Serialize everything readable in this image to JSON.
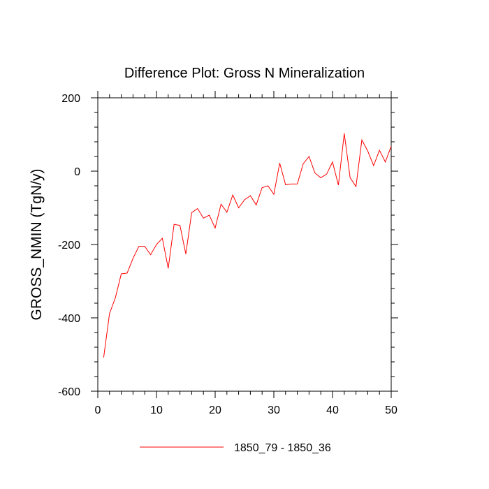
{
  "chart_data": {
    "type": "line",
    "title": "Difference Plot: Gross N Mineralization",
    "xlabel": "",
    "ylabel": "GROSS_NMIN  (TgN/y)",
    "xlim": [
      0,
      50
    ],
    "ylim": [
      -600,
      200
    ],
    "xticks": [
      0,
      10,
      20,
      30,
      40,
      50
    ],
    "yticks": [
      200,
      0,
      -200,
      -400,
      -600
    ],
    "xtick_labels": [
      "0",
      "10",
      "20",
      "30",
      "40",
      "50"
    ],
    "ytick_labels": [
      "200",
      "0",
      "-200",
      "-400",
      "-600"
    ],
    "legend_position": "bottom-center",
    "series": [
      {
        "name": "1850_79 - 1850_36",
        "color": "#ff0000",
        "x": [
          1,
          2,
          3,
          4,
          5,
          6,
          7,
          8,
          9,
          10,
          11,
          12,
          13,
          14,
          15,
          16,
          17,
          18,
          19,
          20,
          21,
          22,
          23,
          24,
          25,
          26,
          27,
          28,
          29,
          30,
          31,
          32,
          33,
          34,
          35,
          36,
          37,
          38,
          39,
          40,
          41,
          42,
          43,
          44,
          45,
          46,
          47,
          48,
          49,
          50
        ],
        "values": [
          -508,
          -388,
          -345,
          -280,
          -278,
          -238,
          -205,
          -205,
          -228,
          -200,
          -183,
          -265,
          -145,
          -148,
          -226,
          -113,
          -102,
          -128,
          -120,
          -155,
          -90,
          -112,
          -65,
          -100,
          -78,
          -67,
          -92,
          -45,
          -40,
          -63,
          22,
          -37,
          -35,
          -35,
          20,
          40,
          -5,
          -18,
          -8,
          25,
          -38,
          103,
          -18,
          -42,
          85,
          55,
          15,
          57,
          25,
          68
        ]
      }
    ]
  }
}
